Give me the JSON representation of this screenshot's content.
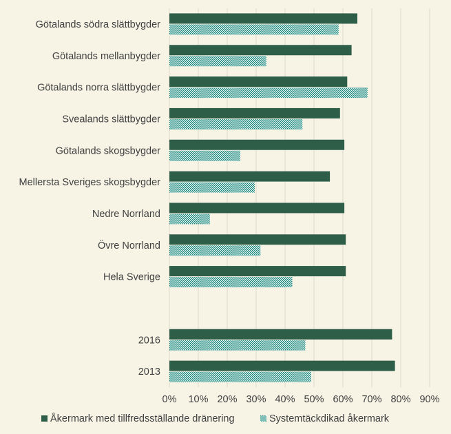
{
  "chart_data": {
    "type": "bar",
    "orientation": "horizontal",
    "categories": [
      "Götalands södra slättbygder",
      "Götalands mellanbygder",
      "Götalands norra slättbygder",
      "Svealands slättbygder",
      "Götalands skogsbygder",
      "Mellersta Sveriges skogsbygder",
      "Nedre Norrland",
      "Övre Norrland",
      "Hela Sverige",
      "",
      "2016",
      "2013"
    ],
    "series": [
      {
        "name": "Åkermark med tillfredsställande dränering",
        "color": "#2e5e48",
        "values": [
          65,
          63,
          61.5,
          59,
          60.5,
          55.5,
          60.5,
          61,
          61,
          null,
          77,
          78
        ]
      },
      {
        "name": "Systemtäckdikad åkermark",
        "color": "#1e8a80",
        "pattern": "checker",
        "values": [
          58.5,
          33.5,
          68.5,
          46,
          24.5,
          29.5,
          14,
          31.5,
          42.5,
          null,
          47,
          49
        ]
      }
    ],
    "xlim": [
      0,
      90
    ],
    "xticks": [
      0,
      10,
      20,
      30,
      40,
      50,
      60,
      70,
      80,
      90
    ],
    "tick_format": "percent",
    "grid": "vertical",
    "legend": "bottom"
  }
}
